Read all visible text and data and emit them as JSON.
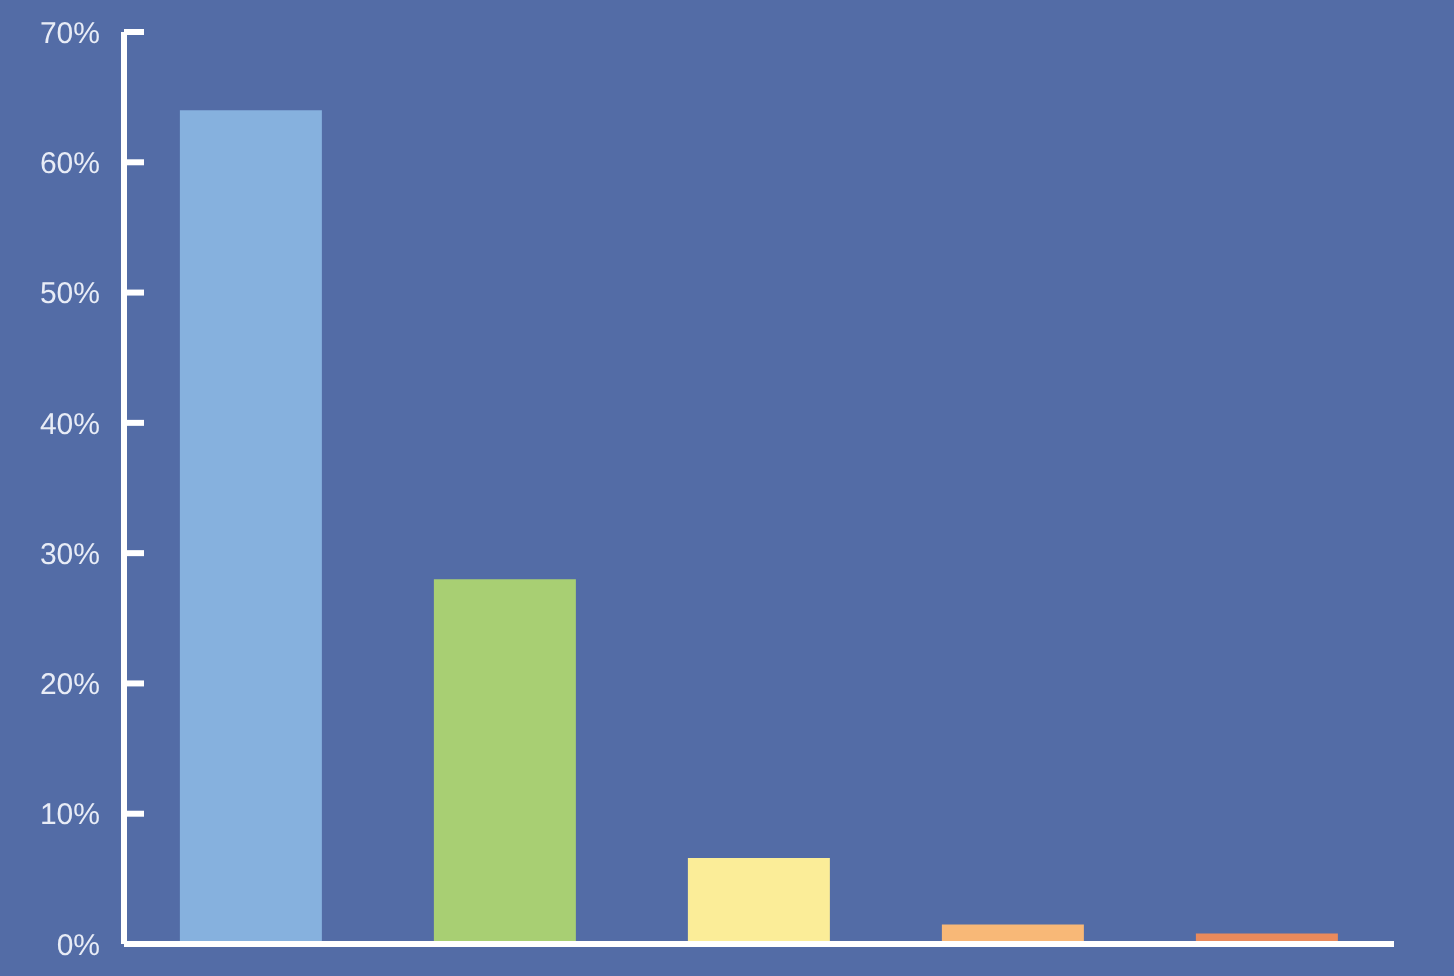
{
  "chart_data": {
    "type": "bar",
    "categories": [
      null,
      null,
      null,
      null,
      null
    ],
    "values": [
      64,
      28,
      6.6,
      1.5,
      0.8
    ],
    "colors": [
      "#86b1de",
      "#a8cf73",
      "#fbed98",
      "#f8b877",
      "#e98a5c"
    ],
    "ylim": [
      0,
      70
    ],
    "yticks": [
      {
        "value": 0,
        "label": "0%"
      },
      {
        "value": 10,
        "label": "10%"
      },
      {
        "value": 20,
        "label": "20%"
      },
      {
        "value": 30,
        "label": "30%"
      },
      {
        "value": 40,
        "label": "40%"
      },
      {
        "value": 50,
        "label": "50%"
      },
      {
        "value": 60,
        "label": "60%"
      },
      {
        "value": 70,
        "label": "70%"
      }
    ],
    "grid": false,
    "legend": false
  }
}
